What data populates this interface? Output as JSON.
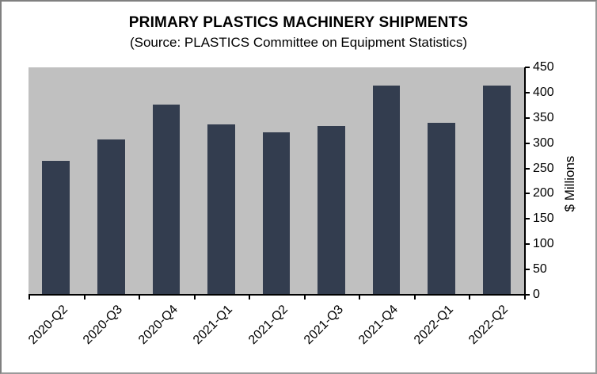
{
  "chart_data": {
    "type": "bar",
    "title": "PRIMARY PLASTICS MACHINERY SHIPMENTS",
    "subtitle": "(Source: PLASTICS Committee on Equipment Statistics)",
    "categories": [
      "2020-Q2",
      "2020-Q3",
      "2020-Q4",
      "2021-Q1",
      "2021-Q2",
      "2021-Q3",
      "2021-Q4",
      "2022-Q1",
      "2022-Q2"
    ],
    "values": [
      265,
      307,
      376,
      337,
      321,
      334,
      414,
      340,
      414
    ],
    "xlabel": "",
    "ylabel": "$ Millions",
    "ylim": [
      0,
      450
    ],
    "yticks": [
      "0",
      "50",
      "100",
      "150",
      "200",
      "250",
      "300",
      "350",
      "400",
      "450"
    ],
    "y_axis_position": "right",
    "grid": false,
    "legend": null,
    "colors": {
      "bar": "#333d4f",
      "plot_background": "#c0c0c0"
    }
  }
}
